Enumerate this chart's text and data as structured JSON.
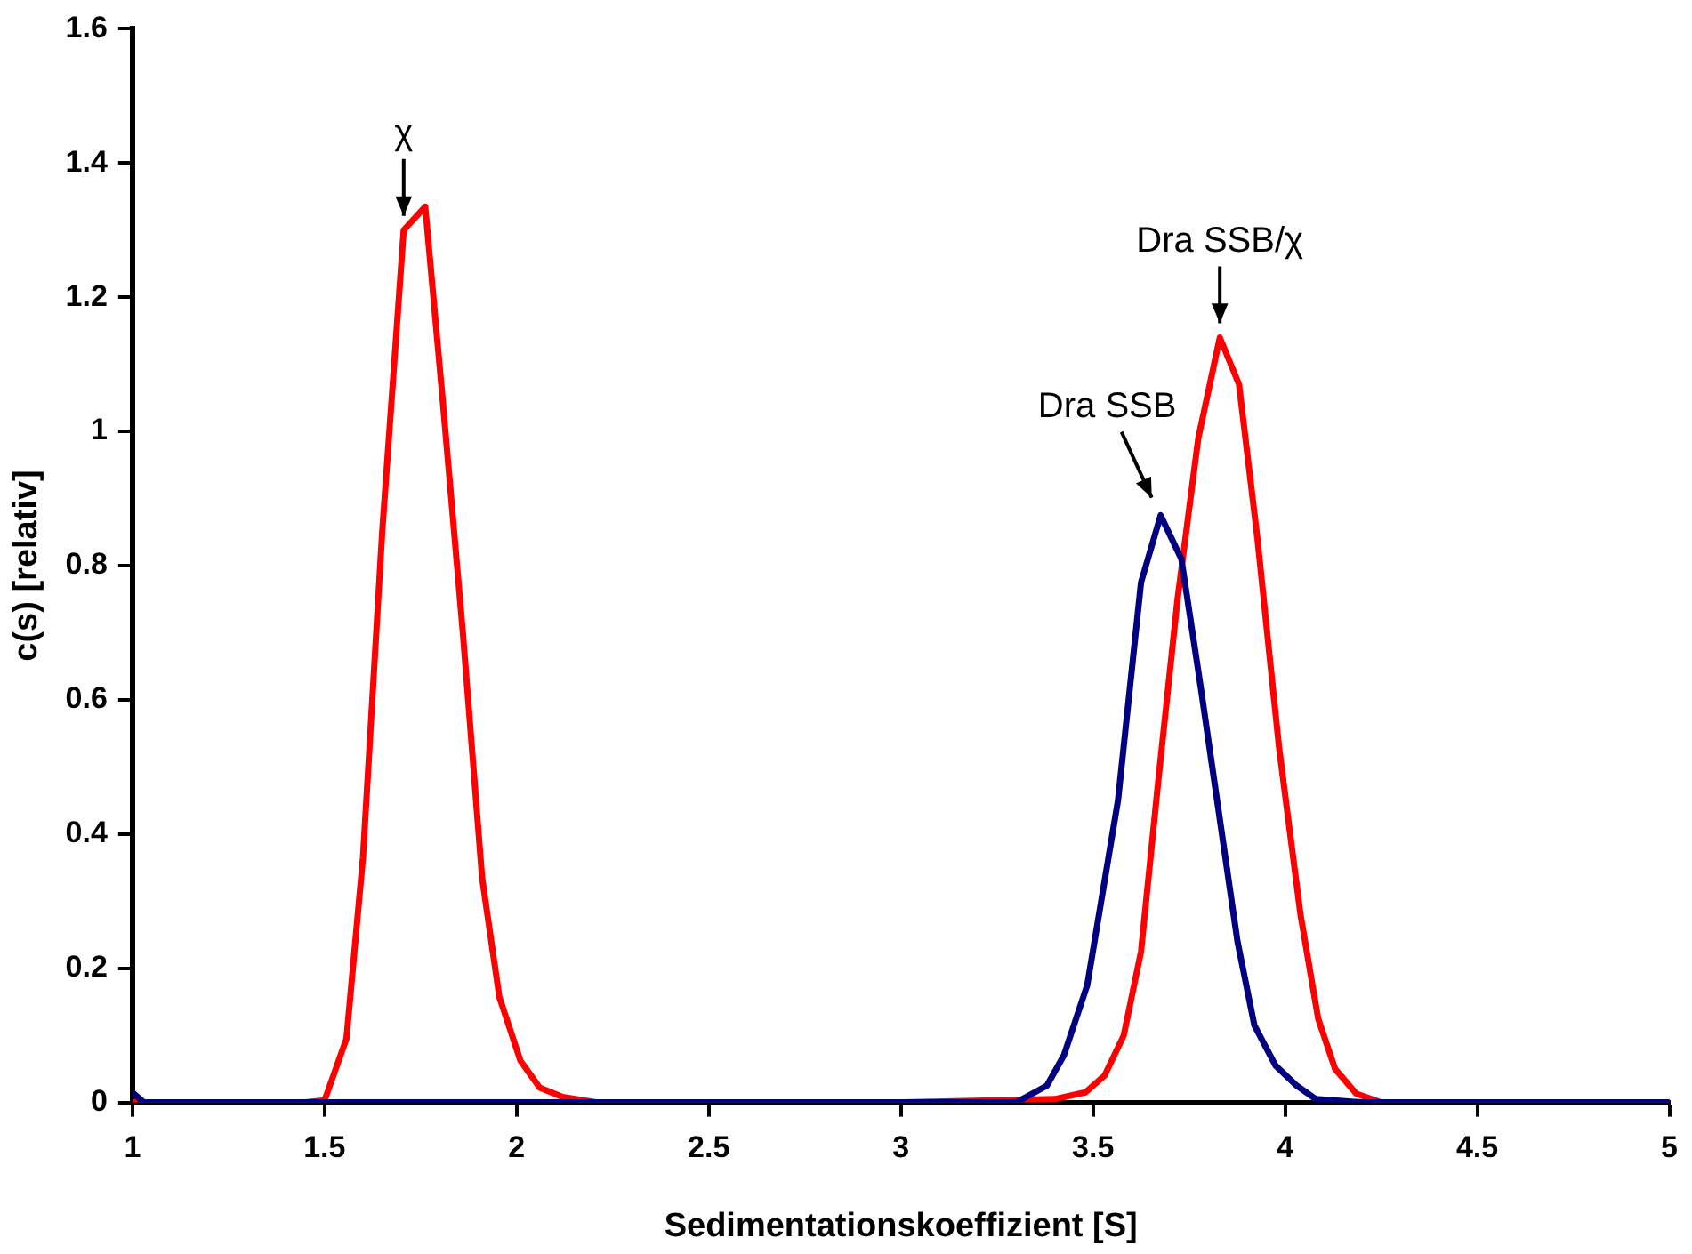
{
  "chart_data": {
    "type": "line",
    "xlabel": "Sedimentationskoeffizient [S]",
    "ylabel": "c(s) [relativ]",
    "xlim": [
      1,
      5
    ],
    "xticks": [
      1,
      1.5,
      2,
      2.5,
      3,
      3.5,
      4,
      4.5,
      5
    ],
    "ylim": [
      0,
      1.6
    ],
    "yticks": [
      0,
      0.2,
      0.4,
      0.6,
      0.8,
      1,
      1.2,
      1.4,
      1.6
    ],
    "grid": false,
    "legend": false,
    "marker": "none",
    "line_style": "solid",
    "series": [
      {
        "color": "#000080",
        "x": [
          1,
          1.03,
          1.5,
          2,
          2.5,
          3,
          3.3,
          3.38,
          3.424,
          3.485,
          3.565,
          3.625,
          3.676,
          3.73,
          3.78,
          3.876,
          3.92,
          3.975,
          4.03,
          4.08,
          4.2,
          5
        ],
        "values": [
          0.015,
          0,
          0,
          0,
          0,
          0,
          0,
          0.025,
          0.07,
          0.175,
          0.45,
          0.775,
          0.875,
          0.81,
          0.62,
          0.24,
          0.115,
          0.055,
          0.025,
          0.005,
          0,
          0
        ]
      },
      {
        "color": "#ff0000",
        "x": [
          1,
          1.45,
          1.5,
          1.557,
          1.6,
          1.65,
          1.706,
          1.762,
          1.807,
          1.86,
          1.91,
          1.955,
          2.01,
          2.06,
          2.12,
          2.21,
          3,
          3.4,
          3.48,
          3.53,
          3.58,
          3.625,
          3.67,
          3.72,
          3.774,
          3.83,
          3.88,
          3.928,
          3.984,
          4.04,
          4.086,
          4.13,
          4.185,
          4.25,
          5
        ],
        "values": [
          0,
          0,
          0.003,
          0.095,
          0.365,
          0.85,
          1.3,
          1.335,
          1.05,
          0.7,
          0.335,
          0.157,
          0.062,
          0.022,
          0.008,
          0,
          0,
          0.005,
          0.015,
          0.04,
          0.1,
          0.225,
          0.48,
          0.75,
          0.99,
          1.14,
          1.07,
          0.84,
          0.53,
          0.28,
          0.125,
          0.05,
          0.013,
          0,
          0
        ]
      }
    ],
    "annotations": [
      {
        "text": "χ",
        "x": 1.706,
        "y": 1.3
      },
      {
        "text": "Dra SSB",
        "x": 3.676,
        "y": 0.88
      },
      {
        "text": "Dra SSB/χ",
        "x": 3.83,
        "y": 1.14
      }
    ]
  }
}
